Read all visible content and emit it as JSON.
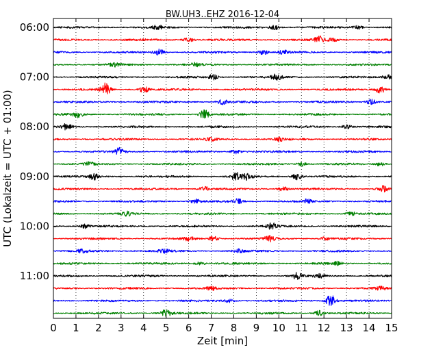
{
  "chart_data": {
    "type": "line",
    "title": "BW.UH3..EHZ 2016-12-04",
    "xlabel": "Zeit  [min]",
    "ylabel": "UTC (Lokalzeit = UTC + 01:00)",
    "xlim": [
      0,
      15
    ],
    "x_ticks": [
      "0",
      "1",
      "2",
      "3",
      "4",
      "5",
      "6",
      "7",
      "8",
      "9",
      "10",
      "11",
      "12",
      "13",
      "14",
      "15"
    ],
    "y_ticks": [
      "06:00",
      "07:00",
      "08:00",
      "09:00",
      "10:00",
      "11:00"
    ],
    "grid": true,
    "colors": [
      "#000000",
      "#ff0000",
      "#0000ff",
      "#008000"
    ],
    "series": [
      {
        "start": "06:00",
        "bursts": [
          [
            4.6,
            0.35
          ],
          [
            9.8,
            0.4
          ],
          [
            13.5,
            0.3
          ]
        ]
      },
      {
        "start": "06:15",
        "bursts": [
          [
            6.0,
            0.35
          ],
          [
            11.8,
            0.5
          ],
          [
            12.4,
            0.25
          ]
        ]
      },
      {
        "start": "06:30",
        "bursts": [
          [
            4.7,
            0.45
          ],
          [
            9.3,
            0.4
          ],
          [
            10.2,
            0.3
          ]
        ]
      },
      {
        "start": "06:45",
        "bursts": [
          [
            2.7,
            0.25
          ],
          [
            6.3,
            0.25
          ]
        ]
      },
      {
        "start": "07:00",
        "bursts": [
          [
            7.1,
            0.4
          ],
          [
            9.9,
            0.45
          ],
          [
            14.8,
            0.35
          ]
        ]
      },
      {
        "start": "07:15",
        "bursts": [
          [
            2.3,
            0.95
          ],
          [
            4.0,
            0.5
          ],
          [
            14.5,
            0.6
          ]
        ]
      },
      {
        "start": "07:30",
        "bursts": [
          [
            7.5,
            0.35
          ],
          [
            14.1,
            0.45
          ]
        ]
      },
      {
        "start": "07:45",
        "bursts": [
          [
            1.1,
            0.45
          ],
          [
            6.7,
            0.7
          ]
        ]
      },
      {
        "start": "08:00",
        "bursts": [
          [
            0.6,
            0.45
          ],
          [
            13.0,
            0.3
          ]
        ]
      },
      {
        "start": "08:15",
        "bursts": [
          [
            7.0,
            0.25
          ],
          [
            10.0,
            0.25
          ]
        ]
      },
      {
        "start": "08:30",
        "bursts": [
          [
            2.9,
            0.55
          ],
          [
            8.1,
            0.3
          ]
        ]
      },
      {
        "start": "08:45",
        "bursts": [
          [
            1.6,
            0.3
          ],
          [
            11.0,
            0.3
          ],
          [
            14.5,
            0.3
          ]
        ]
      },
      {
        "start": "09:00",
        "bursts": [
          [
            1.8,
            0.45
          ],
          [
            8.1,
            0.6
          ],
          [
            8.6,
            0.5
          ],
          [
            10.8,
            0.5
          ]
        ]
      },
      {
        "start": "09:15",
        "bursts": [
          [
            6.7,
            0.35
          ],
          [
            10.2,
            0.3
          ],
          [
            14.6,
            0.5
          ]
        ]
      },
      {
        "start": "09:30",
        "bursts": [
          [
            6.3,
            0.4
          ],
          [
            8.2,
            0.35
          ],
          [
            11.3,
            0.3
          ]
        ]
      },
      {
        "start": "09:45",
        "bursts": [
          [
            3.3,
            0.3
          ],
          [
            13.2,
            0.3
          ]
        ]
      },
      {
        "start": "10:00",
        "bursts": [
          [
            1.4,
            0.3
          ],
          [
            9.7,
            0.45
          ]
        ]
      },
      {
        "start": "10:15",
        "bursts": [
          [
            6.0,
            0.35
          ],
          [
            7.1,
            0.35
          ],
          [
            9.6,
            0.5
          ],
          [
            12.0,
            0.25
          ]
        ]
      },
      {
        "start": "10:30",
        "bursts": [
          [
            1.3,
            0.3
          ],
          [
            4.9,
            0.3
          ],
          [
            8.2,
            0.25
          ]
        ]
      },
      {
        "start": "10:45",
        "bursts": [
          [
            6.5,
            0.25
          ],
          [
            12.6,
            0.25
          ]
        ]
      },
      {
        "start": "11:00",
        "bursts": [
          [
            10.8,
            0.5
          ],
          [
            11.8,
            0.3
          ]
        ]
      },
      {
        "start": "11:15",
        "bursts": [
          [
            7.0,
            0.25
          ],
          [
            14.5,
            0.3
          ]
        ]
      },
      {
        "start": "11:30",
        "bursts": [
          [
            12.3,
            0.9
          ],
          [
            7.8,
            0.25
          ]
        ]
      },
      {
        "start": "11:45",
        "bursts": [
          [
            5.0,
            0.6
          ],
          [
            11.8,
            0.4
          ]
        ]
      }
    ]
  }
}
